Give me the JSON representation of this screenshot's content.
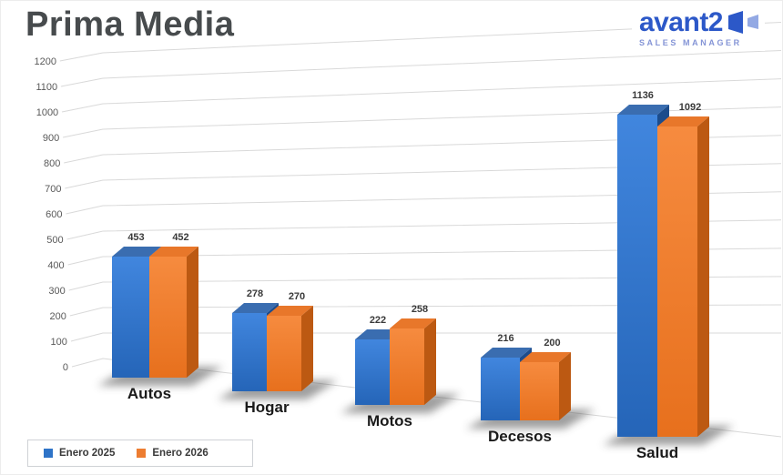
{
  "header": {
    "title": "Prima Media"
  },
  "logo": {
    "brand": "avant2",
    "tagline": "SALES MANAGER",
    "brand_color": "#2C58C8",
    "tagline_color": "#8494D6"
  },
  "chart_data": {
    "type": "bar",
    "style": "3d-perspective",
    "categories": [
      "Autos",
      "Hogar",
      "Motos",
      "Decesos",
      "Salud"
    ],
    "series": [
      {
        "name": "Enero 2025",
        "color": "#2E74C8",
        "values": [
          453,
          278,
          222,
          216,
          1136
        ]
      },
      {
        "name": "Enero 2026",
        "color": "#ED7D31",
        "values": [
          452,
          270,
          258,
          200,
          1092
        ]
      }
    ],
    "ylim": [
      0,
      1200
    ],
    "yticks": [
      0,
      100,
      200,
      300,
      400,
      500,
      600,
      700,
      800,
      900,
      1000,
      1100,
      1200
    ],
    "grid": true,
    "grid_color": "#d9d9d9",
    "data_labels": true,
    "legend_position": "bottom-left"
  }
}
